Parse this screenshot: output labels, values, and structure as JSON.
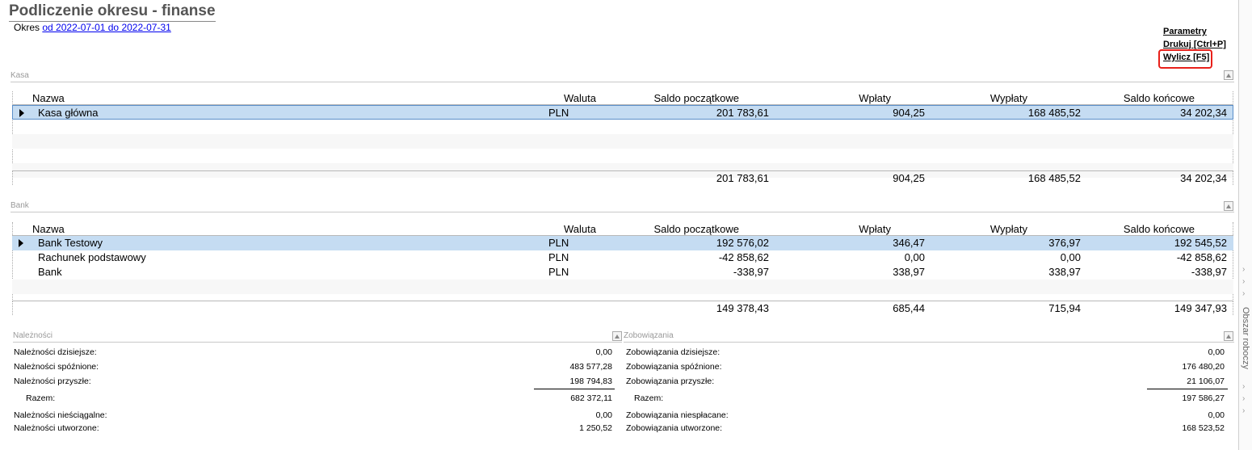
{
  "title": "Podliczenie okresu - finanse",
  "period": {
    "prefix": "Okres",
    "link": "od 2022-07-01 do 2022-07-31"
  },
  "actions": {
    "params": "Parametry",
    "print": "Drukuj [Ctrl+P]",
    "calc": "Wylicz [F5]"
  },
  "columns": {
    "name": "Nazwa",
    "currency": "Waluta",
    "opening": "Saldo początkowe",
    "in": "Wpłaty",
    "out": "Wypłaty",
    "closing": "Saldo końcowe"
  },
  "kasa": {
    "section": "Kasa",
    "rows": [
      {
        "name": "Kasa główna",
        "currency": "PLN",
        "opening": "201 783,61",
        "in": "904,25",
        "out": "168 485,52",
        "closing": "34 202,34"
      }
    ],
    "total": {
      "opening": "201 783,61",
      "in": "904,25",
      "out": "168 485,52",
      "closing": "34 202,34"
    }
  },
  "bank": {
    "section": "Bank",
    "rows": [
      {
        "name": "Bank Testowy",
        "currency": "PLN",
        "opening": "192 576,02",
        "in": "346,47",
        "out": "376,97",
        "closing": "192 545,52"
      },
      {
        "name": "Rachunek podstawowy",
        "currency": "PLN",
        "opening": "-42 858,62",
        "in": "0,00",
        "out": "0,00",
        "closing": "-42 858,62"
      },
      {
        "name": "Bank",
        "currency": "PLN",
        "opening": "-338,97",
        "in": "338,97",
        "out": "338,97",
        "closing": "-338,97"
      }
    ],
    "total": {
      "opening": "149 378,43",
      "in": "685,44",
      "out": "715,94",
      "closing": "149 347,93"
    }
  },
  "naleznosci": {
    "section": "Należności",
    "today": {
      "label": "Należności dzisiejsze:",
      "value": "0,00"
    },
    "late": {
      "label": "Należności spóźnione:",
      "value": "483 577,28"
    },
    "future": {
      "label": "Należności przyszłe:",
      "value": "198 794,83"
    },
    "sum": {
      "label": "Razem:",
      "value": "682 372,11"
    },
    "bad": {
      "label": "Należności nieściągalne:",
      "value": "0,00"
    },
    "created": {
      "label": "Należności utworzone:",
      "value": "1 250,52"
    }
  },
  "zobowiazania": {
    "section": "Zobowiązania",
    "today": {
      "label": "Zobowiązania dzisiejsze:",
      "value": "0,00"
    },
    "late": {
      "label": "Zobowiązania spóźnione:",
      "value": "176 480,20"
    },
    "future": {
      "label": "Zobowiązania przyszłe:",
      "value": "21 106,07"
    },
    "sum": {
      "label": "Razem:",
      "value": "197 586,27"
    },
    "unpaid": {
      "label": "Zobowiązania niespłacane:",
      "value": "0,00"
    },
    "created": {
      "label": "Zobowiązania utworzone:",
      "value": "168 523,52"
    }
  },
  "sidebar": {
    "label": "Obszar roboczy"
  }
}
